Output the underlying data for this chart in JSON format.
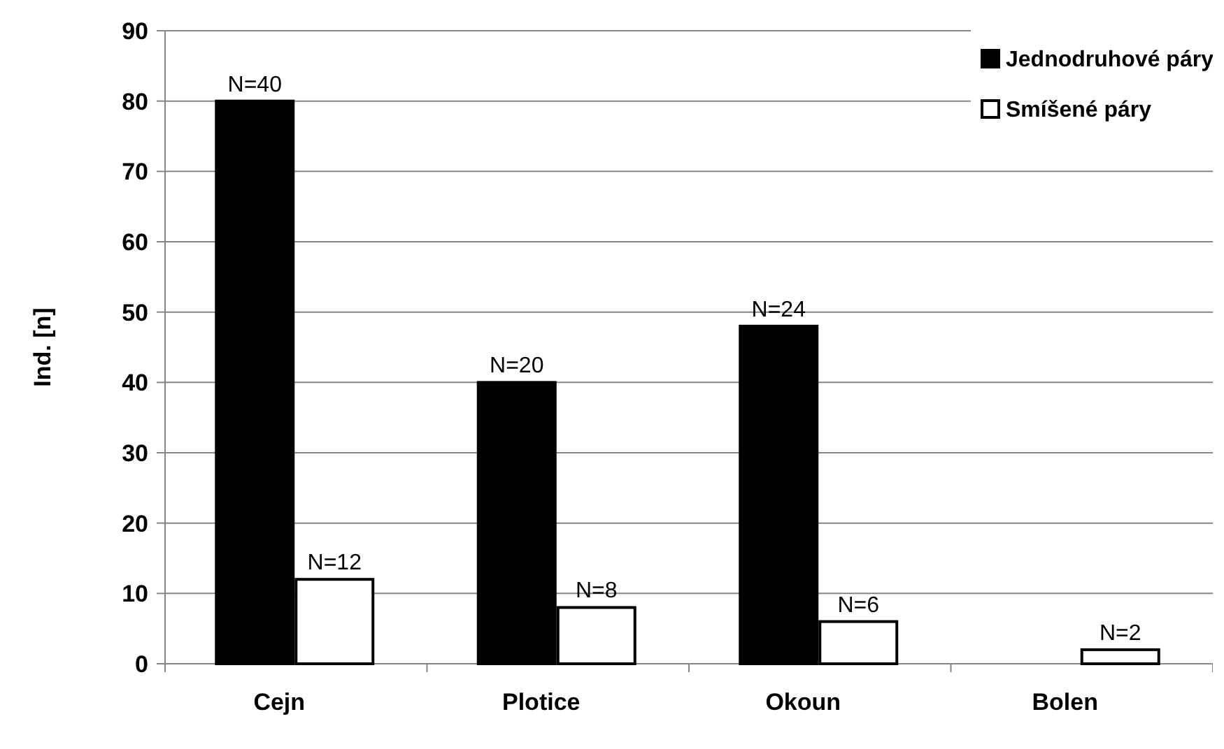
{
  "chart_data": {
    "type": "bar",
    "ylabel": "Ind. [n]",
    "categories": [
      "Cejn",
      "Plotice",
      "Okoun",
      "Bolen"
    ],
    "series": [
      {
        "name": "Jednodruhové páry",
        "color": "#000000",
        "values": [
          80,
          40,
          48,
          null
        ]
      },
      {
        "name": "Smíšené páry",
        "color": "#ffffff",
        "values": [
          12,
          8,
          6,
          2
        ],
        "value_labels": [
          "N=12",
          "N=8",
          "N=6",
          "N=2"
        ]
      }
    ],
    "annotations": [
      {
        "text": "N=40",
        "x": "Cejn",
        "y": 80
      },
      {
        "text": "N=20",
        "x": "Plotice",
        "y": 40
      },
      {
        "text": "N=24",
        "x": "Okoun",
        "y": 48
      }
    ],
    "ylim": [
      0,
      90
    ],
    "yticks": [
      0,
      10,
      20,
      30,
      40,
      50,
      60,
      70,
      80,
      90
    ],
    "grid": "y",
    "legend": "top right"
  }
}
